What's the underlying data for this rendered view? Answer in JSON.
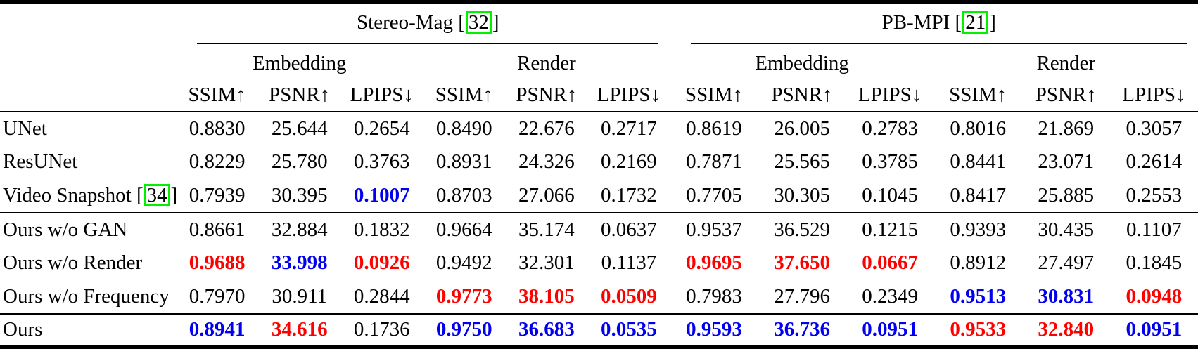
{
  "colors": {
    "text": "#000000",
    "best_value": "#FF0000",
    "second_best_value": "#0000EE",
    "citation_box": "#00F000",
    "rule": "#000000"
  },
  "table": {
    "cite_open": "[",
    "cite_close": "]",
    "groups": [
      {
        "name": "Stereo-Mag",
        "cite": "32"
      },
      {
        "name": "PB-MPI",
        "cite": "21"
      }
    ],
    "subgroups": [
      "Embedding",
      "Render"
    ],
    "metrics": [
      "SSIM↑",
      "PSNR↑",
      "LPIPS↓"
    ],
    "rows": [
      {
        "label": "UNet",
        "cite": null,
        "rule_below": false,
        "values": [
          "0.8830",
          "25.644",
          "0.2654",
          "0.8490",
          "22.676",
          "0.2717",
          "0.8619",
          "26.005",
          "0.2783",
          "0.8016",
          "21.869",
          "0.3057"
        ],
        "colors": [
          "k",
          "k",
          "k",
          "k",
          "k",
          "k",
          "k",
          "k",
          "k",
          "k",
          "k",
          "k"
        ]
      },
      {
        "label": "ResUNet",
        "cite": null,
        "rule_below": false,
        "values": [
          "0.8229",
          "25.780",
          "0.3763",
          "0.8931",
          "24.326",
          "0.2169",
          "0.7871",
          "25.565",
          "0.3785",
          "0.8441",
          "23.071",
          "0.2614"
        ],
        "colors": [
          "k",
          "k",
          "k",
          "k",
          "k",
          "k",
          "k",
          "k",
          "k",
          "k",
          "k",
          "k"
        ]
      },
      {
        "label": "Video Snapshot",
        "cite": "34",
        "rule_below": true,
        "values": [
          "0.7939",
          "30.395",
          "0.1007",
          "0.8703",
          "27.066",
          "0.1732",
          "0.7705",
          "30.305",
          "0.1045",
          "0.8417",
          "25.885",
          "0.2553"
        ],
        "colors": [
          "k",
          "k",
          "b",
          "k",
          "k",
          "k",
          "k",
          "k",
          "k",
          "k",
          "k",
          "k"
        ]
      },
      {
        "label": "Ours w/o GAN",
        "cite": null,
        "rule_below": false,
        "values": [
          "0.8661",
          "32.884",
          "0.1832",
          "0.9664",
          "35.174",
          "0.0637",
          "0.9537",
          "36.529",
          "0.1215",
          "0.9393",
          "30.435",
          "0.1107"
        ],
        "colors": [
          "k",
          "k",
          "k",
          "k",
          "k",
          "k",
          "k",
          "k",
          "k",
          "k",
          "k",
          "k"
        ]
      },
      {
        "label": "Ours w/o Render",
        "cite": null,
        "rule_below": false,
        "values": [
          "0.9688",
          "33.998",
          "0.0926",
          "0.9492",
          "32.301",
          "0.1137",
          "0.9695",
          "37.650",
          "0.0667",
          "0.8912",
          "27.497",
          "0.1845"
        ],
        "colors": [
          "r",
          "b",
          "r",
          "k",
          "k",
          "k",
          "r",
          "r",
          "r",
          "k",
          "k",
          "k"
        ]
      },
      {
        "label": "Ours w/o Frequency",
        "cite": null,
        "rule_below": true,
        "values": [
          "0.7970",
          "30.911",
          "0.2844",
          "0.9773",
          "38.105",
          "0.0509",
          "0.7983",
          "27.796",
          "0.2349",
          "0.9513",
          "30.831",
          "0.0948"
        ],
        "colors": [
          "k",
          "k",
          "k",
          "r",
          "r",
          "r",
          "k",
          "k",
          "k",
          "b",
          "b",
          "r"
        ]
      },
      {
        "label": "Ours",
        "cite": null,
        "rule_below": false,
        "values": [
          "0.8941",
          "34.616",
          "0.1736",
          "0.9750",
          "36.683",
          "0.0535",
          "0.9593",
          "36.736",
          "0.0951",
          "0.9533",
          "32.840",
          "0.0951"
        ],
        "colors": [
          "b",
          "r",
          "k",
          "b",
          "b",
          "b",
          "b",
          "b",
          "b",
          "r",
          "r",
          "b"
        ]
      }
    ]
  }
}
